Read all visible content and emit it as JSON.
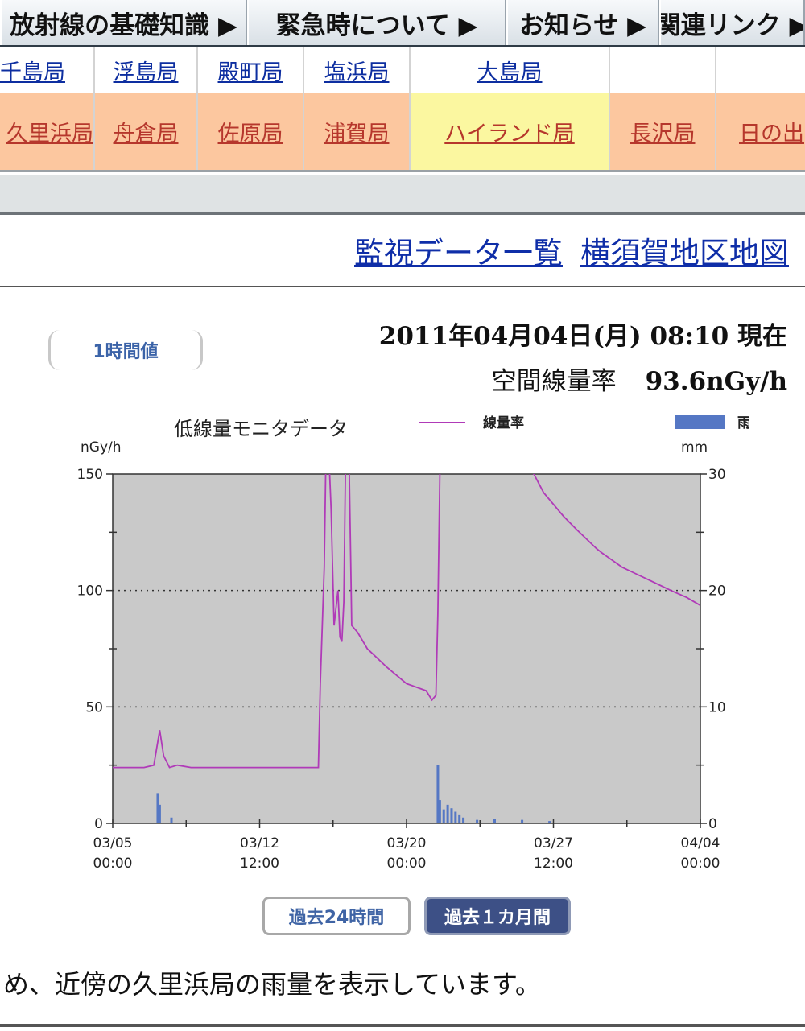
{
  "top_nav": {
    "items": [
      "放射線の基礎知識 ▶",
      "緊急時について ▶",
      "お知らせ ▶",
      "関連リンク ▶"
    ]
  },
  "stations": {
    "row1": [
      "千島局",
      "浮島局",
      "殿町局",
      "塩浜局",
      "大島局",
      "",
      ""
    ],
    "row2": [
      "久里浜局",
      "舟倉局",
      "佐原局",
      "浦賀局",
      "ハイランド局",
      "長沢局",
      "日の出"
    ],
    "active": "ハイランド局"
  },
  "links": {
    "monitor_list": "監視データ一覧",
    "map": "横須賀地区地図"
  },
  "hourly_button": "1時間値",
  "reading": {
    "datetime": "2011年04月04日(月) 08:10 現在",
    "rate_label": "空間線量率",
    "rate_value": "93.6nGy/h"
  },
  "chart_data": {
    "type": "line",
    "title": "低線量モニタデータ",
    "y_left_unit": "nGy/h",
    "y_right_unit": "mm",
    "y_left_ticks": [
      0,
      50,
      100,
      150
    ],
    "y_right_ticks": [
      0,
      10,
      20,
      30
    ],
    "ylim_left": [
      0,
      150
    ],
    "ylim_right": [
      0,
      30
    ],
    "x_range_days": [
      0,
      30
    ],
    "x_ticks": [
      {
        "day": 0,
        "date": "03/05",
        "time": "00:00"
      },
      {
        "day": 7.5,
        "date": "03/12",
        "time": "12:00"
      },
      {
        "day": 15,
        "date": "03/20",
        "time": "00:00"
      },
      {
        "day": 22.5,
        "date": "03/27",
        "time": "12:00"
      },
      {
        "day": 30,
        "date": "04/04",
        "time": "00:00"
      }
    ],
    "grid": "dotted at 50 and 100",
    "legend": "top",
    "colors": {
      "plot_bg": "#c9c9c9",
      "line": "#b03ab8",
      "bar": "#5577c4"
    },
    "series": [
      {
        "name": "線量率",
        "type": "line",
        "points": [
          [
            0,
            24
          ],
          [
            1.6,
            24
          ],
          [
            2.1,
            25
          ],
          [
            2.4,
            40
          ],
          [
            2.6,
            29
          ],
          [
            2.9,
            24
          ],
          [
            3.3,
            25
          ],
          [
            4,
            24
          ],
          [
            6,
            24
          ],
          [
            8,
            24
          ],
          [
            10,
            24
          ],
          [
            10.5,
            24
          ],
          [
            10.6,
            60
          ],
          [
            10.8,
            110
          ],
          [
            10.9,
            165
          ],
          [
            11,
            165
          ],
          [
            11.15,
            135
          ],
          [
            11.3,
            85
          ],
          [
            11.5,
            100
          ],
          [
            11.6,
            80
          ],
          [
            11.7,
            78
          ],
          [
            11.8,
            95
          ],
          [
            11.9,
            165
          ],
          [
            12.05,
            165
          ],
          [
            12.15,
            112
          ],
          [
            12.2,
            85
          ],
          [
            12.5,
            82
          ],
          [
            13,
            75
          ],
          [
            14,
            67
          ],
          [
            15,
            60
          ],
          [
            16,
            57
          ],
          [
            16.3,
            53
          ],
          [
            16.5,
            55
          ],
          [
            16.6,
            90
          ],
          [
            16.7,
            150
          ],
          [
            16.8,
            170
          ],
          [
            17,
            160
          ],
          [
            18,
            165
          ],
          [
            20,
            158
          ],
          [
            21.5,
            150
          ],
          [
            22,
            142
          ],
          [
            23,
            132
          ],
          [
            23.7,
            126
          ],
          [
            24.7,
            118
          ],
          [
            25,
            116
          ],
          [
            26,
            110
          ],
          [
            26.5,
            108
          ],
          [
            27.5,
            104
          ],
          [
            28.5,
            100
          ],
          [
            29.3,
            97
          ],
          [
            30,
            93.6
          ]
        ]
      },
      {
        "name": "雨量",
        "type": "bar",
        "bars": [
          [
            2.3,
            2.6
          ],
          [
            2.4,
            1.6
          ],
          [
            3,
            0.5
          ],
          [
            16.6,
            5
          ],
          [
            16.7,
            2
          ],
          [
            16.9,
            1.2
          ],
          [
            17.1,
            1.6
          ],
          [
            17.3,
            1.3
          ],
          [
            17.5,
            1.0
          ],
          [
            17.7,
            0.7
          ],
          [
            17.9,
            0.5
          ],
          [
            18.6,
            0.3
          ],
          [
            19.5,
            0.4
          ],
          [
            20.9,
            0.3
          ],
          [
            22.3,
            0.2
          ]
        ]
      }
    ]
  },
  "period_buttons": {
    "past_24h": "過去24時間",
    "past_month": "過去１カ月間"
  },
  "footnote": "め、近傍の久里浜局の雨量を表示しています。"
}
